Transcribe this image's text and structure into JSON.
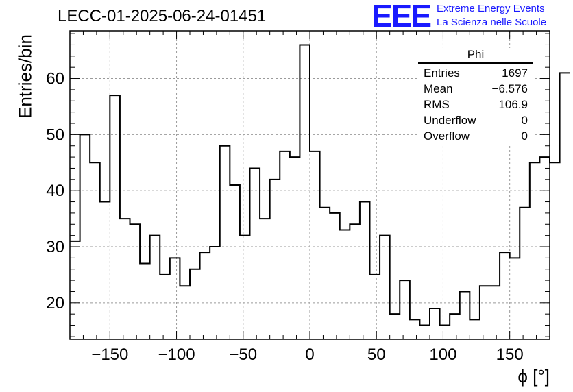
{
  "header": {
    "title": "LECC-01-2025-06-24-01451",
    "logo_text": "EEE",
    "logo_line1": "Extreme Energy Events",
    "logo_line2": "La Scienza nelle Scuole"
  },
  "stats": {
    "title": "Phi",
    "rows": [
      {
        "label": "Entries",
        "value": "1697"
      },
      {
        "label": "Mean",
        "value": "−6.576"
      },
      {
        "label": "RMS",
        "value": "106.9"
      },
      {
        "label": "Underflow",
        "value": "0"
      },
      {
        "label": "Overflow",
        "value": "0"
      }
    ]
  },
  "colors": {
    "line": "#000000",
    "logo": "#1a1aff",
    "grid": "#9a9a9a"
  },
  "chart_data": {
    "type": "histogram",
    "title": "LECC-01-2025-06-24-01451",
    "xlabel": "ϕ [°]",
    "ylabel": "Entries/bin",
    "xlim": [
      -180,
      180
    ],
    "ylim": [
      13.5,
      68.5
    ],
    "bin_width": 7.5,
    "bin_start": -180,
    "values": [
      31,
      50,
      45,
      38,
      57,
      35,
      34,
      27,
      32,
      25,
      28,
      23,
      26,
      29,
      30,
      48,
      41,
      32,
      44,
      35,
      42,
      47,
      46,
      66,
      47,
      37,
      36,
      33,
      34,
      38,
      25,
      32,
      18,
      24,
      17,
      16,
      19,
      16,
      18,
      22,
      17,
      23,
      23,
      29,
      28,
      37,
      45,
      46,
      45,
      61
    ],
    "xticks": [
      -150,
      -100,
      -50,
      0,
      50,
      100,
      150
    ],
    "xtick_labels": [
      "−150",
      "−100",
      "−50",
      "0",
      "50",
      "100",
      "150"
    ],
    "yticks": [
      20,
      30,
      40,
      50,
      60
    ],
    "grid": true,
    "legend": "top-right"
  }
}
